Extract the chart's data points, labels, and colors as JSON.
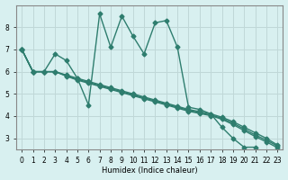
{
  "xlabel": "Humidex (Indice chaleur)",
  "bg_color": "#d8f0f0",
  "line_color": "#2e7d6e",
  "grid_color": "#c0d8d8",
  "x_ticks": [
    0,
    1,
    2,
    3,
    4,
    5,
    6,
    7,
    8,
    9,
    10,
    11,
    12,
    13,
    14,
    15,
    16,
    17,
    18,
    19,
    20,
    21,
    22,
    23
  ],
  "y_ticks": [
    3,
    4,
    5,
    6,
    7,
    8
  ],
  "ylim": [
    2.5,
    9.0
  ],
  "xlim": [
    -0.5,
    23.5
  ],
  "jagged_x": [
    0,
    1,
    2,
    3,
    4,
    5,
    6,
    7,
    8,
    9,
    10,
    11,
    12,
    13,
    14,
    15,
    16,
    17,
    18,
    19,
    20,
    21
  ],
  "jagged_y": [
    7.0,
    6.0,
    6.0,
    6.8,
    6.5,
    5.7,
    4.5,
    8.6,
    7.1,
    8.5,
    7.6,
    6.8,
    8.2,
    8.3,
    7.1,
    4.4,
    4.3,
    4.1,
    3.5,
    3.0,
    2.6,
    2.6
  ],
  "smooth_x": [
    0,
    1,
    2,
    3,
    4,
    5,
    6,
    7,
    8,
    9,
    10,
    11,
    12,
    13,
    14,
    15,
    16,
    17,
    18,
    19,
    20,
    21,
    22,
    23
  ],
  "s1_y": [
    7.0,
    6.0,
    6.0,
    6.0,
    5.85,
    5.7,
    5.56,
    5.42,
    5.28,
    5.14,
    5.0,
    4.86,
    4.72,
    4.58,
    4.44,
    4.3,
    4.2,
    4.1,
    3.95,
    3.75,
    3.5,
    3.25,
    3.0,
    2.7
  ],
  "s2_y": [
    7.0,
    6.0,
    6.0,
    6.0,
    5.82,
    5.65,
    5.52,
    5.38,
    5.24,
    5.1,
    4.96,
    4.82,
    4.68,
    4.54,
    4.4,
    4.26,
    4.15,
    4.05,
    3.9,
    3.68,
    3.42,
    3.15,
    2.92,
    2.65
  ],
  "s3_y": [
    7.0,
    6.0,
    6.0,
    6.0,
    5.8,
    5.62,
    5.48,
    5.34,
    5.2,
    5.06,
    4.92,
    4.78,
    4.64,
    4.5,
    4.36,
    4.22,
    4.12,
    4.02,
    3.86,
    3.62,
    3.35,
    3.08,
    2.84,
    2.58
  ],
  "marker": "D",
  "marker_size": 2.5,
  "line_width": 1.0
}
